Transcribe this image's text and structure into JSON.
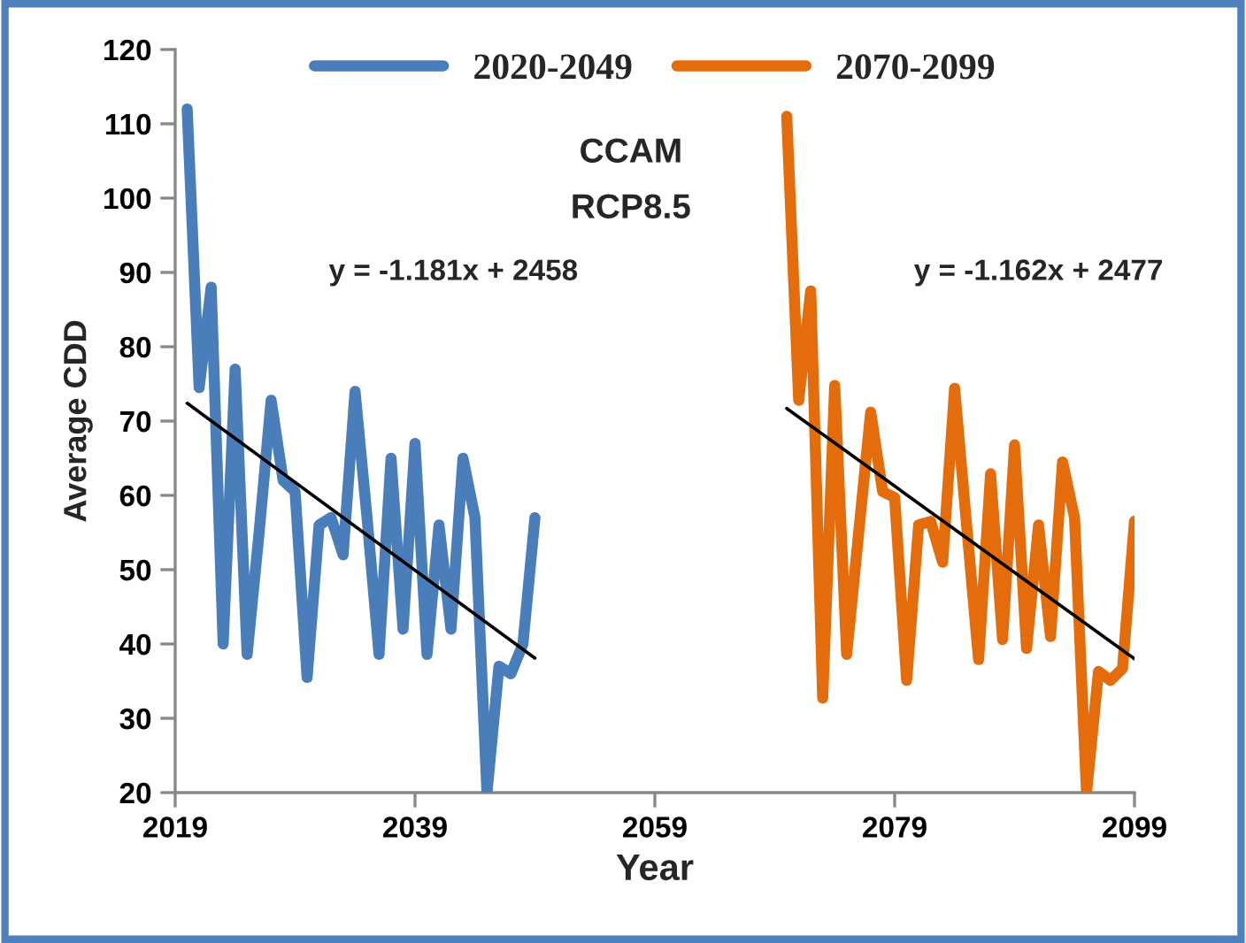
{
  "chart_data": {
    "type": "line",
    "xlabel": "Year",
    "ylabel": "Average CDD",
    "xlim": [
      2019,
      2099
    ],
    "xticks": [
      2019,
      2039,
      2059,
      2079,
      2099
    ],
    "ylim": [
      20,
      120
    ],
    "yticks": [
      20,
      30,
      40,
      50,
      60,
      70,
      80,
      90,
      100,
      110,
      120
    ],
    "grid": false,
    "legend": "top",
    "marker": "none",
    "line_style": "solid",
    "series": [
      {
        "name": "2020-2049",
        "color": "#4a7ebb",
        "x": [
          2020,
          2021,
          2022,
          2023,
          2024,
          2025,
          2026,
          2027,
          2028,
          2029,
          2030,
          2031,
          2032,
          2033,
          2034,
          2035,
          2036,
          2037,
          2038,
          2039,
          2040,
          2041,
          2042,
          2043,
          2044,
          2045,
          2046,
          2047,
          2048,
          2049
        ],
        "values": [
          112,
          74.5,
          88,
          40,
          77,
          38.6,
          55,
          72.8,
          62,
          60.5,
          35.5,
          56,
          57,
          52,
          74,
          57,
          38.6,
          65,
          42,
          67,
          38.6,
          56,
          42,
          65,
          57,
          20,
          37,
          36,
          40,
          57
        ]
      },
      {
        "name": "2070-2099",
        "color": "#e46c0a",
        "x": [
          2070,
          2071,
          2072,
          2073,
          2074,
          2075,
          2076,
          2077,
          2078,
          2079,
          2080,
          2081,
          2082,
          2083,
          2084,
          2085,
          2086,
          2087,
          2088,
          2089,
          2090,
          2091,
          2092,
          2093,
          2094,
          2095,
          2096,
          2097,
          2098,
          2099
        ],
        "values": [
          111,
          72.8,
          87.5,
          32.7,
          74.8,
          38.6,
          55,
          71.2,
          60.5,
          59.7,
          35.1,
          56,
          56.5,
          51,
          74.4,
          56,
          37.9,
          62.9,
          40.6,
          66.8,
          39.4,
          56,
          41,
          64.5,
          57,
          20,
          36.3,
          35.1,
          36.7,
          56.5
        ]
      },
      {
        "type": "line",
        "color": "#000000",
        "x": [
          2020,
          2049
        ],
        "values": [
          72.4,
          38.1
        ]
      },
      {
        "type": "line",
        "color": "#000000",
        "x": [
          2070,
          2099
        ],
        "values": [
          71.7,
          38.0
        ]
      }
    ],
    "annotations": [
      "y = -1.181x + 2458",
      "y = -1.162x + 2477",
      "CCAM",
      "RCP8.5"
    ]
  }
}
